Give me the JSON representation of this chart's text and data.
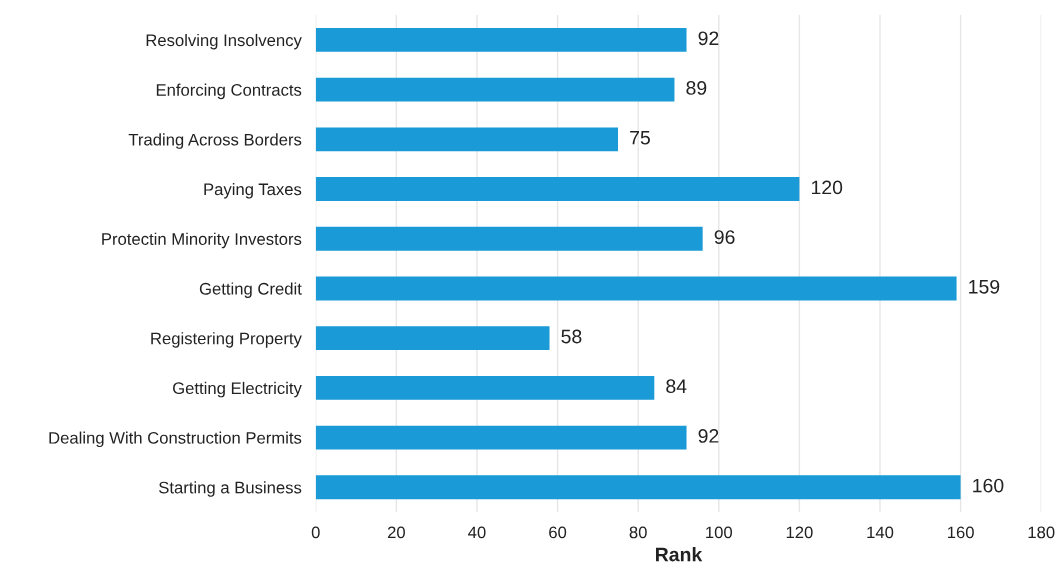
{
  "chart_data": {
    "type": "bar",
    "orientation": "horizontal",
    "xlabel": "Rank",
    "categories": [
      "Resolving Insolvency",
      "Enforcing Contracts",
      "Trading Across Borders",
      "Paying Taxes",
      "Protectin Minority Investors",
      "Getting Credit",
      "Registering Property",
      "Getting Electricity",
      "Dealing With Construction Permits",
      "Starting a Business"
    ],
    "values": [
      92,
      89,
      75,
      120,
      96,
      159,
      58,
      84,
      92,
      160
    ],
    "color": "#1a9ad6",
    "xlim": [
      0,
      180
    ],
    "xticks": [
      0,
      20,
      40,
      60,
      80,
      100,
      120,
      140,
      160,
      180
    ],
    "grid": "x",
    "data_labels": true,
    "legend": false
  }
}
